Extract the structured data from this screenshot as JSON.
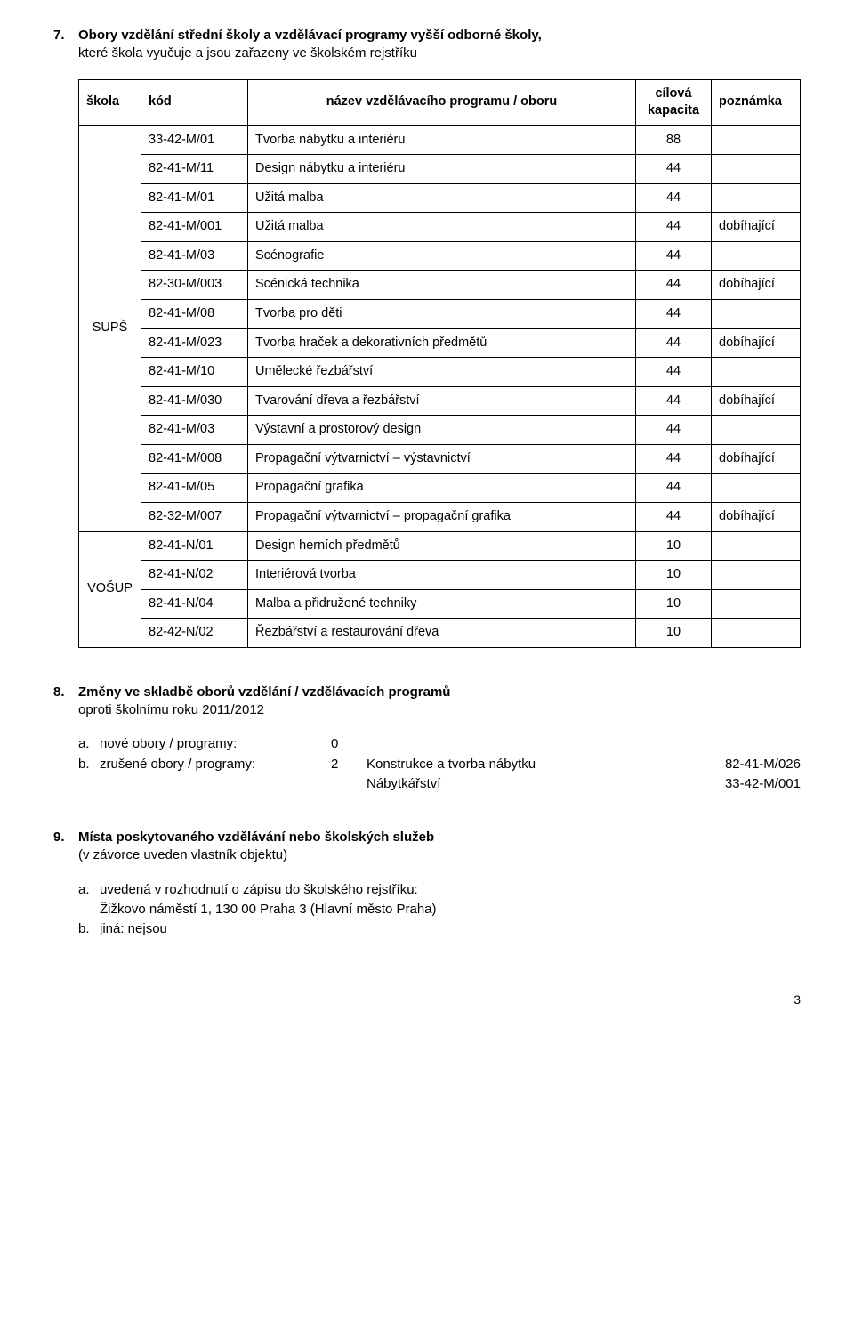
{
  "section7": {
    "num": "7.",
    "title_bold": "Obory vzdělání střední školy a vzdělávací programy vyšší odborné školy,",
    "title_sub": "které škola vyučuje a jsou zařazeny ve školském rejstříku",
    "headers": {
      "school": "škola",
      "code": "kód",
      "name": "název vzdělávacího programu / oboru",
      "capacity_l1": "cílová",
      "capacity_l2": "kapacita",
      "note": "poznámka"
    },
    "groups": [
      {
        "school": "SUPŠ",
        "rows": [
          {
            "code": "33-42-M/01",
            "name": "Tvorba nábytku a interiéru",
            "cap": "88",
            "note": ""
          },
          {
            "code": "82-41-M/11",
            "name": "Design nábytku a interiéru",
            "cap": "44",
            "note": ""
          },
          {
            "code": "82-41-M/01",
            "name": "Užitá malba",
            "cap": "44",
            "note": ""
          },
          {
            "code": "82-41-M/001",
            "name": "Užitá malba",
            "cap": "44",
            "note": "dobíhající"
          },
          {
            "code": "82-41-M/03",
            "name": "Scénografie",
            "cap": "44",
            "note": ""
          },
          {
            "code": "82-30-M/003",
            "name": "Scénická technika",
            "cap": "44",
            "note": "dobíhající"
          },
          {
            "code": "82-41-M/08",
            "name": "Tvorba pro děti",
            "cap": "44",
            "note": ""
          },
          {
            "code": "82-41-M/023",
            "name": "Tvorba hraček a dekorativních předmětů",
            "cap": "44",
            "note": "dobíhající"
          },
          {
            "code": "82-41-M/10",
            "name": "Umělecké řezbářství",
            "cap": "44",
            "note": ""
          },
          {
            "code": "82-41-M/030",
            "name": "Tvarování dřeva a řezbářství",
            "cap": "44",
            "note": "dobíhající"
          },
          {
            "code": "82-41-M/03",
            "name": "Výstavní a prostorový design",
            "cap": "44",
            "note": ""
          },
          {
            "code": "82-41-M/008",
            "name": "Propagační výtvarnictví – výstavnictví",
            "cap": "44",
            "note": "dobíhající"
          },
          {
            "code": "82-41-M/05",
            "name": "Propagační grafika",
            "cap": "44",
            "note": ""
          },
          {
            "code": "82-32-M/007",
            "name": "Propagační výtvarnictví – propagační grafika",
            "cap": "44",
            "note": "dobíhající"
          }
        ]
      },
      {
        "school": "VOŠUP",
        "rows": [
          {
            "code": "82-41-N/01",
            "name": "Design herních předmětů",
            "cap": "10",
            "note": ""
          },
          {
            "code": "82-41-N/02",
            "name": "Interiérová tvorba",
            "cap": "10",
            "note": ""
          },
          {
            "code": "82-41-N/04",
            "name": "Malba a přidružené techniky",
            "cap": "10",
            "note": ""
          },
          {
            "code": "82-42-N/02",
            "name": "Řezbářství a restaurování dřeva",
            "cap": "10",
            "note": ""
          }
        ]
      }
    ]
  },
  "section8": {
    "num": "8.",
    "title_bold": "Změny ve skladbě oborů vzdělání / vzdělávacích programů",
    "title_sub": "oproti školnímu roku 2011/2012",
    "line_a": {
      "marker": "a.",
      "label": "nové obory / programy:",
      "value": "0"
    },
    "line_b": {
      "marker": "b.",
      "label": "zrušené obory / programy:",
      "value": "2",
      "extras": [
        {
          "left": "Konstrukce a tvorba nábytku",
          "right": "82-41-M/026"
        },
        {
          "left": "Nábytkářství",
          "right": "33-42-M/001"
        }
      ]
    }
  },
  "section9": {
    "num": "9.",
    "title_bold": "Místa poskytovaného vzdělávání nebo školských služeb",
    "title_sub": "(v závorce uveden vlastník objektu)",
    "a_marker": "a.",
    "a_line1": "uvedená v rozhodnutí o zápisu do školského rejstříku:",
    "a_line2": "Žižkovo náměstí 1, 130 00 Praha 3 (Hlavní město Praha)",
    "b_marker": "b.",
    "b_text": "jiná: nejsou"
  },
  "page_number": "3"
}
